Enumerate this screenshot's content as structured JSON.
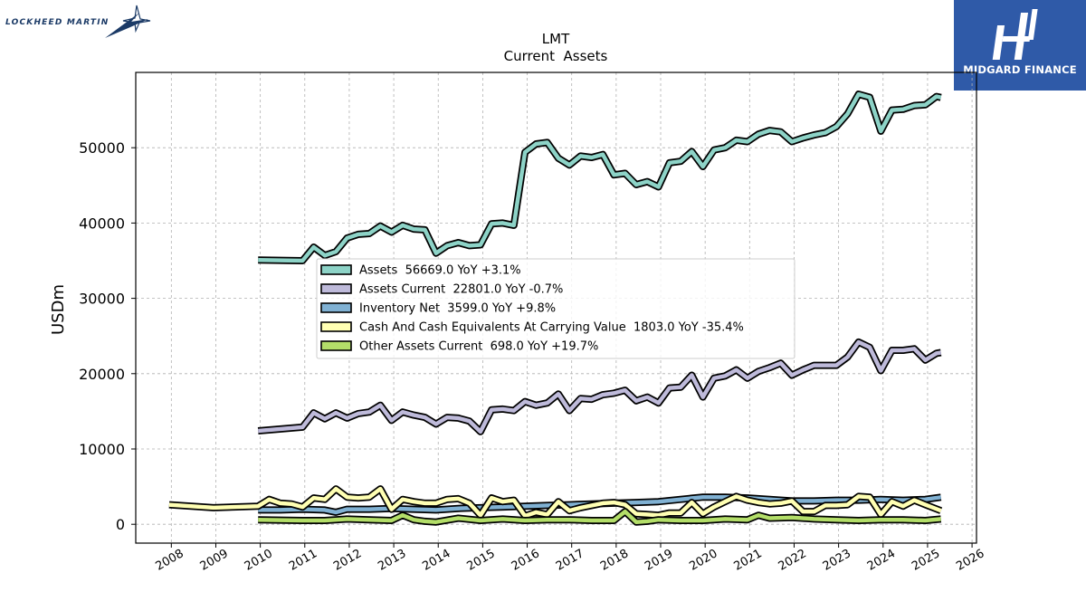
{
  "logos": {
    "left_text": "LOCKHEED MARTIN",
    "right_text": "MIDGARD FINANCE"
  },
  "colors": {
    "assets": "#8dd3c7",
    "assets_current": "#bebada",
    "inventory_net": "#80b1d3",
    "cash": "#ffffb3",
    "other_assets_current": "#b3de69",
    "badge_bg": "#2f5aa8"
  },
  "chart_data": {
    "type": "line",
    "title": "LMT",
    "subtitle": "Current  Assets",
    "xlabel": "",
    "ylabel": "USDm",
    "xlim": [
      2007.2,
      2026.1
    ],
    "ylim": [
      -2500,
      60000
    ],
    "x_ticks": [
      "2008",
      "2009",
      "2010",
      "2011",
      "2012",
      "2013",
      "2014",
      "2015",
      "2016",
      "2017",
      "2018",
      "2019",
      "2020",
      "2021",
      "2022",
      "2023",
      "2024",
      "2025",
      "2026"
    ],
    "y_ticks": [
      "0",
      "10000",
      "20000",
      "30000",
      "40000",
      "50000"
    ],
    "grid": true,
    "legend_position": "center",
    "series": [
      {
        "name": "Assets",
        "legend": "Assets  56669.0 YoY +3.1%",
        "x": [
          2009.95,
          2010.95,
          2011.2,
          2011.45,
          2011.7,
          2011.95,
          2012.2,
          2012.45,
          2012.7,
          2012.95,
          2013.2,
          2013.45,
          2013.7,
          2013.95,
          2014.2,
          2014.45,
          2014.7,
          2014.95,
          2015.2,
          2015.45,
          2015.7,
          2015.95,
          2016.2,
          2016.45,
          2016.7,
          2016.95,
          2017.2,
          2017.45,
          2017.7,
          2017.95,
          2018.2,
          2018.45,
          2018.7,
          2018.95,
          2019.2,
          2019.45,
          2019.7,
          2019.95,
          2020.2,
          2020.45,
          2020.7,
          2020.95,
          2021.2,
          2021.45,
          2021.7,
          2021.95,
          2022.2,
          2022.45,
          2022.7,
          2022.95,
          2023.2,
          2023.45,
          2023.7,
          2023.95,
          2024.2,
          2024.45,
          2024.7,
          2024.95,
          2025.2,
          2025.3
        ],
        "values": [
          35100,
          35000,
          36800,
          35700,
          36200,
          38000,
          38500,
          38600,
          39600,
          38800,
          39700,
          39200,
          39100,
          36000,
          37000,
          37400,
          37000,
          37100,
          39900,
          40000,
          39700,
          49400,
          50500,
          50700,
          48600,
          47700,
          48900,
          48700,
          49100,
          46400,
          46600,
          45100,
          45500,
          44800,
          48000,
          48200,
          49500,
          47500,
          49700,
          50000,
          51000,
          50800,
          51800,
          52300,
          52100,
          50800,
          51300,
          51700,
          52000,
          52800,
          54500,
          57100,
          56700,
          52200,
          55000,
          55100,
          55600,
          55700,
          56800,
          56669
        ]
      },
      {
        "name": "Assets Current",
        "legend": "Assets Current  22801.0 YoY -0.7%",
        "x": [
          2009.95,
          2010.95,
          2011.2,
          2011.45,
          2011.7,
          2011.95,
          2012.2,
          2012.45,
          2012.7,
          2012.95,
          2013.2,
          2013.45,
          2013.7,
          2013.95,
          2014.2,
          2014.45,
          2014.7,
          2014.95,
          2015.2,
          2015.45,
          2015.7,
          2015.95,
          2016.2,
          2016.45,
          2016.7,
          2016.95,
          2017.2,
          2017.45,
          2017.7,
          2017.95,
          2018.2,
          2018.45,
          2018.7,
          2018.95,
          2019.2,
          2019.45,
          2019.7,
          2019.95,
          2020.2,
          2020.45,
          2020.7,
          2020.95,
          2021.2,
          2021.45,
          2021.7,
          2021.95,
          2022.2,
          2022.45,
          2022.7,
          2022.95,
          2023.2,
          2023.45,
          2023.7,
          2023.95,
          2024.2,
          2024.45,
          2024.7,
          2024.95,
          2025.2,
          2025.3
        ],
        "values": [
          12400,
          12900,
          14800,
          14000,
          14800,
          14100,
          14700,
          14900,
          15800,
          13800,
          14900,
          14500,
          14200,
          13300,
          14200,
          14100,
          13700,
          12300,
          15200,
          15300,
          15100,
          16300,
          15800,
          16100,
          17300,
          15100,
          16700,
          16600,
          17200,
          17400,
          17800,
          16400,
          16900,
          16100,
          18100,
          18200,
          19800,
          16900,
          19400,
          19700,
          20500,
          19400,
          20300,
          20800,
          21400,
          19800,
          20500,
          21100,
          21100,
          21100,
          22200,
          24200,
          23500,
          20400,
          23100,
          23100,
          23300,
          21800,
          22700,
          22801
        ]
      },
      {
        "name": "Inventory Net",
        "legend": "Inventory Net  3599.0 YoY +9.8%",
        "x": [
          2009.95,
          2010.45,
          2010.95,
          2011.45,
          2011.7,
          2011.95,
          2012.45,
          2012.95,
          2013.45,
          2013.95,
          2014.45,
          2014.95,
          2015.45,
          2015.95,
          2016.45,
          2016.95,
          2017.45,
          2017.95,
          2018.45,
          2018.95,
          2019.45,
          2019.95,
          2020.45,
          2020.95,
          2021.45,
          2021.95,
          2022.45,
          2022.95,
          2023.45,
          2023.95,
          2024.45,
          2024.95,
          2025.3
        ],
        "values": [
          1900,
          1900,
          2000,
          1900,
          1600,
          2000,
          2000,
          2100,
          2000,
          1900,
          2100,
          2200,
          2300,
          2400,
          2500,
          2600,
          2700,
          2800,
          2900,
          3000,
          3300,
          3600,
          3600,
          3500,
          3300,
          3100,
          3100,
          3200,
          3200,
          3300,
          3200,
          3300,
          3599
        ]
      },
      {
        "name": "Cash And Cash Equivalents At Carrying Value",
        "legend": "Cash And Cash Equivalents At Carrying Value  1803.0 YoY -35.4%",
        "x": [
          2007.95,
          2008.95,
          2009.95,
          2010.2,
          2010.45,
          2010.7,
          2010.95,
          2011.2,
          2011.45,
          2011.7,
          2011.95,
          2012.2,
          2012.45,
          2012.7,
          2012.95,
          2013.2,
          2013.45,
          2013.7,
          2013.95,
          2014.2,
          2014.45,
          2014.7,
          2014.95,
          2015.2,
          2015.45,
          2015.7,
          2015.95,
          2016.2,
          2016.45,
          2016.7,
          2016.95,
          2017.2,
          2017.45,
          2017.7,
          2017.95,
          2018.2,
          2018.45,
          2018.7,
          2018.95,
          2019.2,
          2019.45,
          2019.7,
          2019.95,
          2020.2,
          2020.45,
          2020.7,
          2020.95,
          2021.2,
          2021.45,
          2021.7,
          2021.95,
          2022.2,
          2022.45,
          2022.7,
          2022.95,
          2023.2,
          2023.45,
          2023.7,
          2023.95,
          2024.2,
          2024.45,
          2024.7,
          2024.95,
          2025.3
        ],
        "values": [
          2600,
          2200,
          2400,
          3300,
          2800,
          2700,
          2300,
          3500,
          3300,
          4700,
          3600,
          3500,
          3600,
          4700,
          2000,
          3300,
          3000,
          2800,
          2800,
          3300,
          3400,
          2800,
          1200,
          3500,
          3000,
          3200,
          1100,
          1600,
          1300,
          3000,
          1800,
          2200,
          2500,
          2800,
          2900,
          2600,
          1400,
          1300,
          1200,
          1500,
          1500,
          2900,
          1400,
          2300,
          3000,
          3700,
          3200,
          2900,
          2700,
          2800,
          3100,
          1700,
          1700,
          2500,
          2500,
          2600,
          3700,
          3600,
          1300,
          3000,
          2400,
          3200,
          2600,
          1803
        ]
      },
      {
        "name": "Other Assets Current",
        "legend": "Other Assets Current  698.0 YoY +19.7%",
        "x": [
          2009.95,
          2010.95,
          2011.45,
          2011.95,
          2012.45,
          2012.95,
          2013.2,
          2013.45,
          2013.7,
          2013.95,
          2014.45,
          2014.95,
          2015.45,
          2015.95,
          2016.45,
          2016.95,
          2017.45,
          2017.7,
          2017.95,
          2018.2,
          2018.45,
          2018.7,
          2018.95,
          2019.45,
          2019.95,
          2020.45,
          2020.95,
          2021.2,
          2021.45,
          2021.95,
          2022.45,
          2022.95,
          2023.45,
          2023.95,
          2024.45,
          2024.95,
          2025.3
        ],
        "values": [
          600,
          500,
          500,
          700,
          600,
          500,
          1200,
          600,
          400,
          300,
          800,
          500,
          700,
          500,
          600,
          600,
          500,
          500,
          500,
          1700,
          300,
          400,
          600,
          500,
          500,
          700,
          600,
          1200,
          800,
          900,
          700,
          600,
          500,
          600,
          600,
          500,
          698
        ]
      }
    ]
  }
}
